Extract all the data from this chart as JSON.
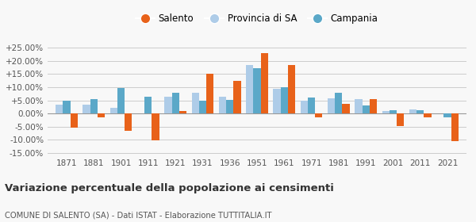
{
  "years": [
    1871,
    1881,
    1901,
    1911,
    1921,
    1931,
    1936,
    1951,
    1961,
    1971,
    1981,
    1991,
    2001,
    2011,
    2021
  ],
  "salento": [
    -5.5,
    -1.5,
    -6.5,
    -10.2,
    1.0,
    15.0,
    12.5,
    23.0,
    18.5,
    -1.5,
    3.5,
    5.5,
    -4.8,
    -1.5,
    -10.5
  ],
  "provincia_sa": [
    3.2,
    3.2,
    2.0,
    0.0,
    6.5,
    8.0,
    6.5,
    18.5,
    9.5,
    5.0,
    5.8,
    5.5,
    1.0,
    1.5,
    0.0
  ],
  "campania": [
    4.8,
    5.5,
    9.8,
    6.5,
    8.0,
    5.0,
    5.2,
    17.2,
    10.0,
    6.0,
    8.0,
    3.0,
    1.2,
    1.2,
    -1.5
  ],
  "color_salento": "#E8621A",
  "color_provincia": "#AECCE8",
  "color_campania": "#5BA8C8",
  "background_color": "#f8f8f8",
  "grid_color": "#cccccc",
  "title": "Variazione percentuale della popolazione ai censimenti",
  "subtitle": "COMUNE DI SALENTO (SA) - Dati ISTAT - Elaborazione TUTTITALIA.IT",
  "ylim": [
    -16,
    28
  ],
  "yticks": [
    -15,
    -10,
    -5,
    0,
    5,
    10,
    15,
    20,
    25
  ],
  "ytick_labels": [
    "-15.00%",
    "-10.00%",
    "-5.00%",
    "0.00%",
    "+5.00%",
    "+10.00%",
    "+15.00%",
    "+20.00%",
    "+25.00%"
  ],
  "legend_labels": [
    "Salento",
    "Provincia di SA",
    "Campania"
  ]
}
